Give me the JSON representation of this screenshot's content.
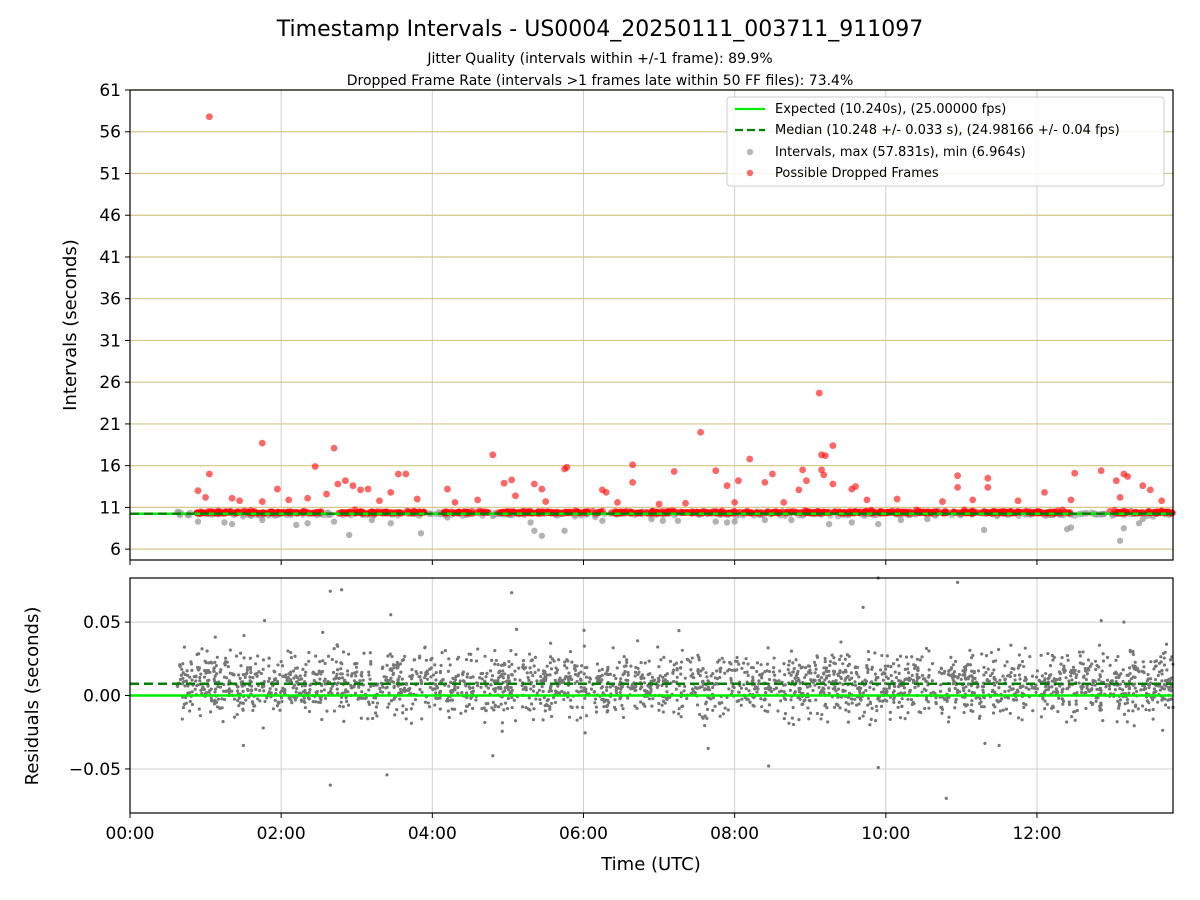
{
  "chart_data": [
    {
      "type": "scatter",
      "title": "Timestamp Intervals - US0004_20250111_003711_911097",
      "subtitle_lines": [
        "Jitter Quality (intervals within +/-1 frame): 89.9%",
        "Dropped Frame Rate (intervals >1 frames late within 50 FF files): 73.4%"
      ],
      "xlabel": "",
      "ylabel": "Intervals (seconds)",
      "x_unit": "hours (UTC)",
      "xlim": [
        0.0,
        13.8
      ],
      "ylim": [
        4.7,
        61.0
      ],
      "yticks": [
        6,
        11,
        16,
        21,
        26,
        31,
        36,
        41,
        46,
        51,
        56,
        61
      ],
      "ytick_labels": [
        "6",
        "11",
        "16",
        "21",
        "26",
        "31",
        "36",
        "41",
        "46",
        "51",
        "56",
        "61"
      ],
      "xticks": [
        0,
        2,
        4,
        6,
        8,
        10,
        12
      ],
      "grid": true,
      "legend_position": "top-right",
      "reference_lines": [
        {
          "name": "Expected (10.240s), (25.00000 fps)",
          "y": 10.24,
          "style": "solid",
          "color": "#00ee00"
        },
        {
          "name": "Median (10.248 +/- 0.033 s), (24.98166 +/- 0.04 fps)",
          "y": 10.248,
          "style": "dashed",
          "color": "#008000"
        }
      ],
      "series": [
        {
          "name": "Intervals, max (57.831s), min (6.964s)",
          "color": "#999999",
          "x_range": [
            0.62,
            13.8
          ],
          "baseline": 10.24,
          "max": 57.831,
          "min": 6.964,
          "low_outliers": [
            {
              "x": 0.9,
              "y": 9.3
            },
            {
              "x": 1.25,
              "y": 9.2
            },
            {
              "x": 1.35,
              "y": 9.0
            },
            {
              "x": 1.75,
              "y": 9.5
            },
            {
              "x": 2.2,
              "y": 8.9
            },
            {
              "x": 2.35,
              "y": 9.1
            },
            {
              "x": 2.7,
              "y": 9.3
            },
            {
              "x": 2.9,
              "y": 7.7
            },
            {
              "x": 3.2,
              "y": 9.5
            },
            {
              "x": 3.45,
              "y": 9.1
            },
            {
              "x": 3.85,
              "y": 7.9
            },
            {
              "x": 4.2,
              "y": 9.8
            },
            {
              "x": 5.3,
              "y": 9.2
            },
            {
              "x": 5.35,
              "y": 8.2
            },
            {
              "x": 5.45,
              "y": 7.6
            },
            {
              "x": 5.75,
              "y": 8.2
            },
            {
              "x": 6.25,
              "y": 9.4
            },
            {
              "x": 6.9,
              "y": 9.6
            },
            {
              "x": 7.05,
              "y": 9.4
            },
            {
              "x": 7.25,
              "y": 9.4
            },
            {
              "x": 7.75,
              "y": 9.3
            },
            {
              "x": 7.9,
              "y": 9.2
            },
            {
              "x": 8.0,
              "y": 9.3
            },
            {
              "x": 8.4,
              "y": 9.5
            },
            {
              "x": 8.75,
              "y": 9.5
            },
            {
              "x": 9.25,
              "y": 9.0
            },
            {
              "x": 9.55,
              "y": 9.2
            },
            {
              "x": 9.9,
              "y": 9.0
            },
            {
              "x": 10.2,
              "y": 9.5
            },
            {
              "x": 10.55,
              "y": 9.6
            },
            {
              "x": 11.3,
              "y": 8.3
            },
            {
              "x": 12.4,
              "y": 8.4
            },
            {
              "x": 12.45,
              "y": 8.6
            },
            {
              "x": 13.1,
              "y": 7.0
            },
            {
              "x": 13.15,
              "y": 8.5
            },
            {
              "x": 13.35,
              "y": 9.1
            },
            {
              "x": 13.4,
              "y": 9.6
            }
          ]
        },
        {
          "name": "Possible Dropped Frames",
          "color": "#ff0000",
          "dense_band": {
            "x_from": 0.88,
            "x_to": 13.8,
            "y": 10.3,
            "gaps": [
              [
                2.55,
                2.75
              ],
              [
                3.9,
                4.15
              ],
              [
                12.45,
                12.95
              ]
            ]
          },
          "points": [
            {
              "x": 1.05,
              "y": 57.8
            },
            {
              "x": 9.12,
              "y": 24.7
            },
            {
              "x": 7.55,
              "y": 20.0
            },
            {
              "x": 1.75,
              "y": 18.7
            },
            {
              "x": 9.3,
              "y": 18.4
            },
            {
              "x": 2.7,
              "y": 18.1
            },
            {
              "x": 9.15,
              "y": 17.3
            },
            {
              "x": 9.2,
              "y": 17.2
            },
            {
              "x": 4.8,
              "y": 17.3
            },
            {
              "x": 8.2,
              "y": 16.8
            },
            {
              "x": 2.45,
              "y": 15.9
            },
            {
              "x": 6.65,
              "y": 16.1
            },
            {
              "x": 5.75,
              "y": 15.6
            },
            {
              "x": 5.78,
              "y": 15.8
            },
            {
              "x": 9.15,
              "y": 15.5
            },
            {
              "x": 7.2,
              "y": 15.3
            },
            {
              "x": 7.75,
              "y": 15.4
            },
            {
              "x": 8.9,
              "y": 15.5
            },
            {
              "x": 12.85,
              "y": 15.4
            },
            {
              "x": 1.05,
              "y": 15.0
            },
            {
              "x": 3.55,
              "y": 15.0
            },
            {
              "x": 3.65,
              "y": 15.0
            },
            {
              "x": 8.5,
              "y": 15.0
            },
            {
              "x": 12.5,
              "y": 15.1
            },
            {
              "x": 13.15,
              "y": 15.0
            },
            {
              "x": 13.2,
              "y": 14.7
            },
            {
              "x": 9.18,
              "y": 14.9
            },
            {
              "x": 10.95,
              "y": 14.8
            },
            {
              "x": 11.35,
              "y": 14.5
            },
            {
              "x": 13.05,
              "y": 14.2
            },
            {
              "x": 2.85,
              "y": 14.2
            },
            {
              "x": 5.05,
              "y": 14.3
            },
            {
              "x": 6.65,
              "y": 14.0
            },
            {
              "x": 8.05,
              "y": 14.2
            },
            {
              "x": 8.4,
              "y": 14.0
            },
            {
              "x": 8.95,
              "y": 14.2
            },
            {
              "x": 9.3,
              "y": 13.8
            },
            {
              "x": 9.6,
              "y": 13.5
            },
            {
              "x": 5.35,
              "y": 13.8
            },
            {
              "x": 4.95,
              "y": 13.9
            },
            {
              "x": 2.75,
              "y": 13.8
            },
            {
              "x": 1.95,
              "y": 13.2
            },
            {
              "x": 4.2,
              "y": 13.2
            },
            {
              "x": 3.45,
              "y": 12.8
            },
            {
              "x": 10.95,
              "y": 13.4
            },
            {
              "x": 11.35,
              "y": 13.4
            },
            {
              "x": 13.4,
              "y": 13.6
            },
            {
              "x": 13.5,
              "y": 13.1
            },
            {
              "x": 0.9,
              "y": 13.0
            },
            {
              "x": 2.6,
              "y": 12.6
            },
            {
              "x": 2.95,
              "y": 13.6
            },
            {
              "x": 3.05,
              "y": 13.1
            },
            {
              "x": 3.15,
              "y": 13.2
            },
            {
              "x": 5.1,
              "y": 12.4
            },
            {
              "x": 5.45,
              "y": 13.2
            },
            {
              "x": 6.25,
              "y": 13.1
            },
            {
              "x": 6.3,
              "y": 12.8
            },
            {
              "x": 8.85,
              "y": 13.1
            },
            {
              "x": 9.55,
              "y": 13.2
            },
            {
              "x": 7.9,
              "y": 13.6
            },
            {
              "x": 12.1,
              "y": 12.8
            },
            {
              "x": 1.0,
              "y": 12.2
            },
            {
              "x": 1.35,
              "y": 12.1
            },
            {
              "x": 1.45,
              "y": 11.8
            },
            {
              "x": 1.75,
              "y": 11.7
            },
            {
              "x": 2.1,
              "y": 11.9
            },
            {
              "x": 2.35,
              "y": 12.1
            },
            {
              "x": 3.3,
              "y": 11.8
            },
            {
              "x": 3.8,
              "y": 12.0
            },
            {
              "x": 4.3,
              "y": 11.6
            },
            {
              "x": 4.6,
              "y": 11.9
            },
            {
              "x": 5.5,
              "y": 11.7
            },
            {
              "x": 6.45,
              "y": 11.6
            },
            {
              "x": 7.0,
              "y": 11.4
            },
            {
              "x": 7.35,
              "y": 11.5
            },
            {
              "x": 8.0,
              "y": 11.6
            },
            {
              "x": 8.65,
              "y": 11.6
            },
            {
              "x": 9.75,
              "y": 11.9
            },
            {
              "x": 10.15,
              "y": 12.0
            },
            {
              "x": 10.75,
              "y": 11.7
            },
            {
              "x": 11.15,
              "y": 11.9
            },
            {
              "x": 11.75,
              "y": 11.8
            },
            {
              "x": 12.45,
              "y": 11.9
            },
            {
              "x": 13.1,
              "y": 12.2
            },
            {
              "x": 13.65,
              "y": 11.8
            }
          ]
        }
      ]
    },
    {
      "type": "scatter",
      "title": "",
      "xlabel": "Time (UTC)",
      "ylabel": "Residuals (seconds)",
      "xlim": [
        0.0,
        13.8
      ],
      "ylim": [
        -0.08,
        0.08
      ],
      "yticks": [
        0.05,
        0.0,
        -0.05
      ],
      "ytick_labels": [
        "0.05",
        "0.00",
        "−0.05"
      ],
      "xticks": [
        0,
        2,
        4,
        6,
        8,
        10,
        12
      ],
      "xtick_labels": [
        "00:00",
        "02:00",
        "04:00",
        "06:00",
        "08:00",
        "10:00",
        "12:00"
      ],
      "grid": true,
      "reference_lines": [
        {
          "y": 0.0,
          "style": "solid",
          "color": "#00ee00"
        },
        {
          "y": 0.008,
          "style": "dashed",
          "color": "#008000"
        }
      ],
      "series": [
        {
          "color": "#777777",
          "x_range": [
            0.62,
            13.8
          ],
          "typical_spread": 0.03,
          "outliers": [
            {
              "x": 1.78,
              "y": 0.051
            },
            {
              "x": 2.55,
              "y": 0.043
            },
            {
              "x": 2.65,
              "y": 0.071
            },
            {
              "x": 2.8,
              "y": 0.072
            },
            {
              "x": 3.45,
              "y": 0.055
            },
            {
              "x": 5.05,
              "y": 0.07
            },
            {
              "x": 9.7,
              "y": 0.06
            },
            {
              "x": 9.9,
              "y": 0.08
            },
            {
              "x": 10.95,
              "y": 0.077
            },
            {
              "x": 12.85,
              "y": 0.051
            },
            {
              "x": 13.15,
              "y": 0.05
            },
            {
              "x": 2.65,
              "y": -0.061
            },
            {
              "x": 3.4,
              "y": -0.054
            },
            {
              "x": 4.8,
              "y": -0.041
            },
            {
              "x": 8.45,
              "y": -0.048
            },
            {
              "x": 9.9,
              "y": -0.049
            },
            {
              "x": 10.8,
              "y": -0.07
            },
            {
              "x": 1.5,
              "y": -0.034
            },
            {
              "x": 7.65,
              "y": -0.036
            },
            {
              "x": 11.5,
              "y": -0.034
            }
          ]
        }
      ]
    }
  ],
  "legend": {
    "items": [
      {
        "label": "Expected (10.240s), (25.00000 fps)",
        "marker": "line"
      },
      {
        "label": "Median (10.248 +/- 0.033 s), (24.98166 +/- 0.04 fps)",
        "marker": "dashed-line"
      },
      {
        "label": "Intervals, max (57.831s), min (6.964s)",
        "marker": "gray-dot"
      },
      {
        "label": "Possible Dropped Frames",
        "marker": "red-dot"
      }
    ]
  }
}
